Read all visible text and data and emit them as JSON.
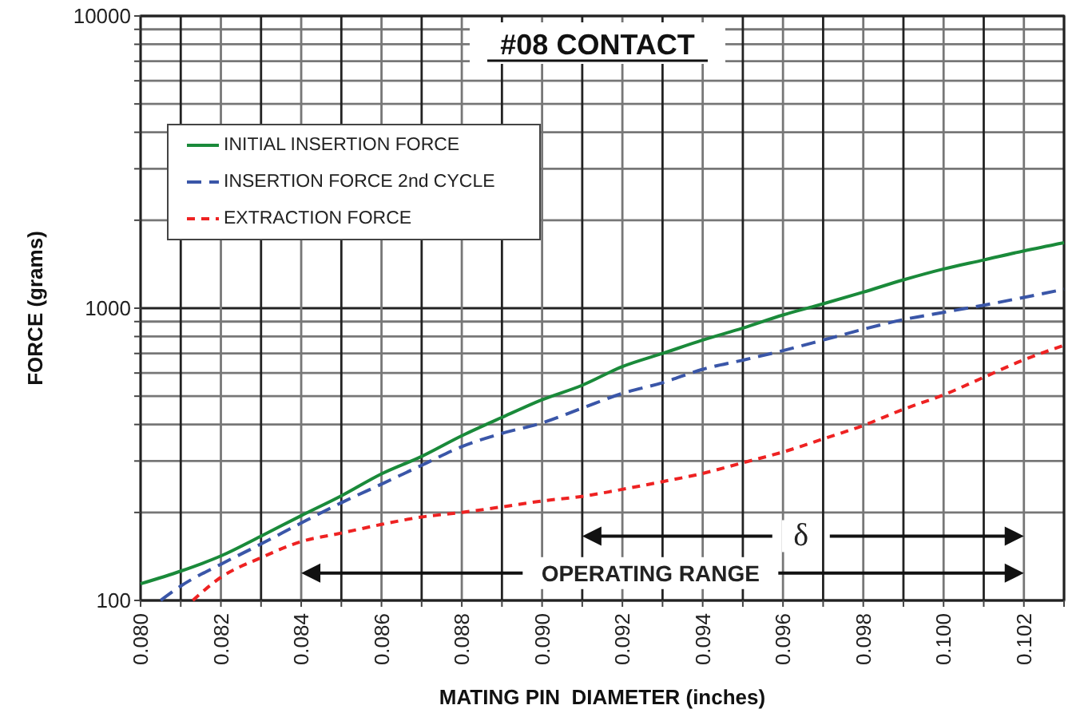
{
  "chart_data": {
    "type": "line",
    "title": "#08 CONTACT",
    "xlabel": "MATING PIN  DIAMETER (inches)",
    "ylabel": "FORCE (grams)",
    "log": "y",
    "grid": true,
    "legend": "top left",
    "marker": "none",
    "xlim": [
      0.08,
      0.103
    ],
    "ylim": [
      100,
      10000
    ],
    "xticks": [
      {
        "value": 0.08,
        "label": "0.080"
      },
      {
        "value": 0.081,
        "label": null
      },
      {
        "value": 0.082,
        "label": "0.082"
      },
      {
        "value": 0.083,
        "label": null
      },
      {
        "value": 0.084,
        "label": "0.084"
      },
      {
        "value": 0.085,
        "label": null
      },
      {
        "value": 0.086,
        "label": "0.086"
      },
      {
        "value": 0.087,
        "label": null
      },
      {
        "value": 0.088,
        "label": "0.088"
      },
      {
        "value": 0.089,
        "label": null
      },
      {
        "value": 0.09,
        "label": "0.090"
      },
      {
        "value": 0.091,
        "label": null
      },
      {
        "value": 0.092,
        "label": "0.092"
      },
      {
        "value": 0.093,
        "label": null
      },
      {
        "value": 0.094,
        "label": "0.094"
      },
      {
        "value": 0.095,
        "label": null
      },
      {
        "value": 0.096,
        "label": "0.096"
      },
      {
        "value": 0.097,
        "label": null
      },
      {
        "value": 0.098,
        "label": "0.098"
      },
      {
        "value": 0.099,
        "label": null
      },
      {
        "value": 0.1,
        "label": "0.100"
      },
      {
        "value": 0.101,
        "label": null
      },
      {
        "value": 0.102,
        "label": "0.102"
      },
      {
        "value": 0.103,
        "label": null
      }
    ],
    "yticks": [
      100,
      {
        "value": 200,
        "label": null
      },
      {
        "value": 300,
        "label": null
      },
      {
        "value": 400,
        "label": null
      },
      {
        "value": 500,
        "label": null
      },
      {
        "value": 600,
        "label": null
      },
      {
        "value": 700,
        "label": null
      },
      {
        "value": 800,
        "label": null
      },
      {
        "value": 900,
        "label": null
      },
      1000,
      {
        "value": 2000,
        "label": null
      },
      {
        "value": 3000,
        "label": null
      },
      {
        "value": 4000,
        "label": null
      },
      {
        "value": 5000,
        "label": null
      },
      {
        "value": 6000,
        "label": null
      },
      {
        "value": 7000,
        "label": null
      },
      {
        "value": 8000,
        "label": null
      },
      {
        "value": 9000,
        "label": null
      },
      10000
    ],
    "series": [
      {
        "name": "INITIAL INSERTION FORCE",
        "color": "#1a8a3a",
        "line_style": "solid",
        "x": [
          0.08,
          0.081,
          0.082,
          0.083,
          0.084,
          0.085,
          0.086,
          0.087,
          0.088,
          0.089,
          0.09,
          0.091,
          0.092,
          0.093,
          0.094,
          0.095,
          0.096,
          0.097,
          0.098,
          0.099,
          0.1,
          0.101,
          0.102,
          0.103
        ],
        "values": [
          114,
          126,
          142,
          166,
          195,
          228,
          271,
          311,
          366,
          423,
          486,
          545,
          631,
          700,
          778,
          855,
          948,
          1035,
          1135,
          1250,
          1362,
          1462,
          1571,
          1676
        ]
      },
      {
        "name": "INSERTION FORCE 2nd CYCLE",
        "color": "#3a56a8",
        "line_style": "dashed",
        "x": [
          0.0805,
          0.081,
          0.082,
          0.083,
          0.084,
          0.085,
          0.086,
          0.087,
          0.088,
          0.089,
          0.09,
          0.091,
          0.092,
          0.093,
          0.094,
          0.095,
          0.096,
          0.097,
          0.098,
          0.099,
          0.1,
          0.101,
          0.102,
          0.103
        ],
        "values": [
          100,
          112,
          133,
          156,
          184,
          216,
          250,
          290,
          336,
          373,
          405,
          455,
          511,
          556,
          618,
          664,
          716,
          778,
          847,
          914,
          968,
          1024,
          1089,
          1161
        ]
      },
      {
        "name": "EXTRACTION FORCE",
        "color": "#ee2222",
        "line_style": "dashed",
        "x": [
          0.0813,
          0.082,
          0.083,
          0.084,
          0.085,
          0.086,
          0.087,
          0.088,
          0.089,
          0.09,
          0.091,
          0.092,
          0.093,
          0.094,
          0.095,
          0.096,
          0.097,
          0.098,
          0.099,
          0.1,
          0.101,
          0.102,
          0.103
        ],
        "values": [
          100,
          120,
          140,
          159,
          170,
          182,
          193,
          200,
          209,
          219,
          227,
          240,
          255,
          272,
          296,
          322,
          357,
          397,
          451,
          505,
          580,
          666,
          746
        ]
      }
    ],
    "annotations": [
      "OPERATING RANGE",
      "δ"
    ]
  }
}
